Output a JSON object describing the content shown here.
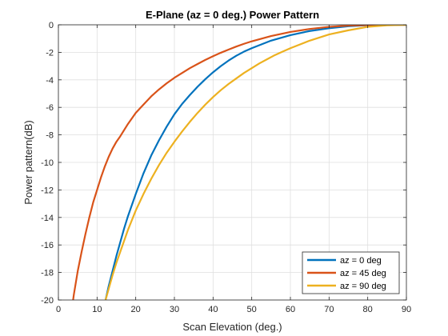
{
  "chart_data": {
    "type": "line",
    "title": "E-Plane (az = 0 deg.) Power Pattern",
    "xlabel": "Scan Elevation (deg.)",
    "ylabel": "Power pattern(dB)",
    "xlim": [
      0,
      90
    ],
    "ylim": [
      -20,
      0
    ],
    "xticks": [
      0,
      10,
      20,
      30,
      40,
      50,
      60,
      70,
      80,
      90
    ],
    "yticks": [
      0,
      -2,
      -4,
      -6,
      -8,
      -10,
      -12,
      -14,
      -16,
      -18,
      -20
    ],
    "grid": true,
    "legend_position": "bottom-right",
    "series": [
      {
        "name": "az = 0 deg",
        "color": "#0072BD",
        "x": [
          12.2,
          13,
          14,
          15,
          16,
          17,
          18,
          19,
          20,
          22,
          24,
          26,
          28,
          30,
          32,
          34,
          36,
          38,
          40,
          42,
          44,
          46,
          48,
          50,
          55,
          60,
          65,
          70,
          75,
          80,
          85,
          90
        ],
        "y": [
          -20,
          -19.0,
          -17.9,
          -16.8,
          -15.8,
          -14.8,
          -13.9,
          -13.1,
          -12.3,
          -10.8,
          -9.5,
          -8.4,
          -7.4,
          -6.5,
          -5.75,
          -5.1,
          -4.5,
          -3.95,
          -3.45,
          -3.0,
          -2.6,
          -2.25,
          -1.95,
          -1.7,
          -1.15,
          -0.75,
          -0.45,
          -0.25,
          -0.1,
          -0.03,
          0,
          0
        ]
      },
      {
        "name": "az = 45 deg",
        "color": "#D95319",
        "x": [
          3.8,
          4,
          5,
          6,
          7,
          8,
          9,
          10,
          11,
          12,
          13,
          14,
          15,
          16,
          18,
          20,
          22,
          24,
          26,
          28,
          30,
          32,
          34,
          36,
          38,
          40,
          42,
          44,
          46,
          48,
          50,
          55,
          60,
          65,
          70,
          75,
          80,
          85,
          90
        ],
        "y": [
          -20,
          -19.6,
          -17.9,
          -16.5,
          -15.2,
          -14.0,
          -12.9,
          -12.0,
          -11.1,
          -10.3,
          -9.6,
          -9.0,
          -8.5,
          -8.1,
          -7.2,
          -6.4,
          -5.8,
          -5.2,
          -4.7,
          -4.25,
          -3.85,
          -3.5,
          -3.15,
          -2.85,
          -2.55,
          -2.28,
          -2.03,
          -1.8,
          -1.58,
          -1.38,
          -1.2,
          -0.82,
          -0.52,
          -0.3,
          -0.15,
          -0.06,
          -0.02,
          0,
          0
        ]
      },
      {
        "name": "az = 90 deg",
        "color": "#EDB120",
        "x": [
          12.2,
          13,
          14,
          15,
          16,
          17,
          18,
          19,
          20,
          22,
          24,
          26,
          28,
          30,
          32,
          34,
          36,
          38,
          40,
          42,
          44,
          46,
          48,
          50,
          52,
          54,
          56,
          58,
          60,
          65,
          70,
          75,
          80,
          85,
          90
        ],
        "y": [
          -20,
          -19.2,
          -18.2,
          -17.3,
          -16.5,
          -15.7,
          -14.9,
          -14.2,
          -13.5,
          -12.3,
          -11.2,
          -10.2,
          -9.3,
          -8.5,
          -7.75,
          -7.05,
          -6.4,
          -5.8,
          -5.25,
          -4.75,
          -4.3,
          -3.9,
          -3.5,
          -3.15,
          -2.8,
          -2.5,
          -2.2,
          -1.95,
          -1.7,
          -1.15,
          -0.7,
          -0.4,
          -0.15,
          -0.04,
          0
        ]
      }
    ]
  }
}
